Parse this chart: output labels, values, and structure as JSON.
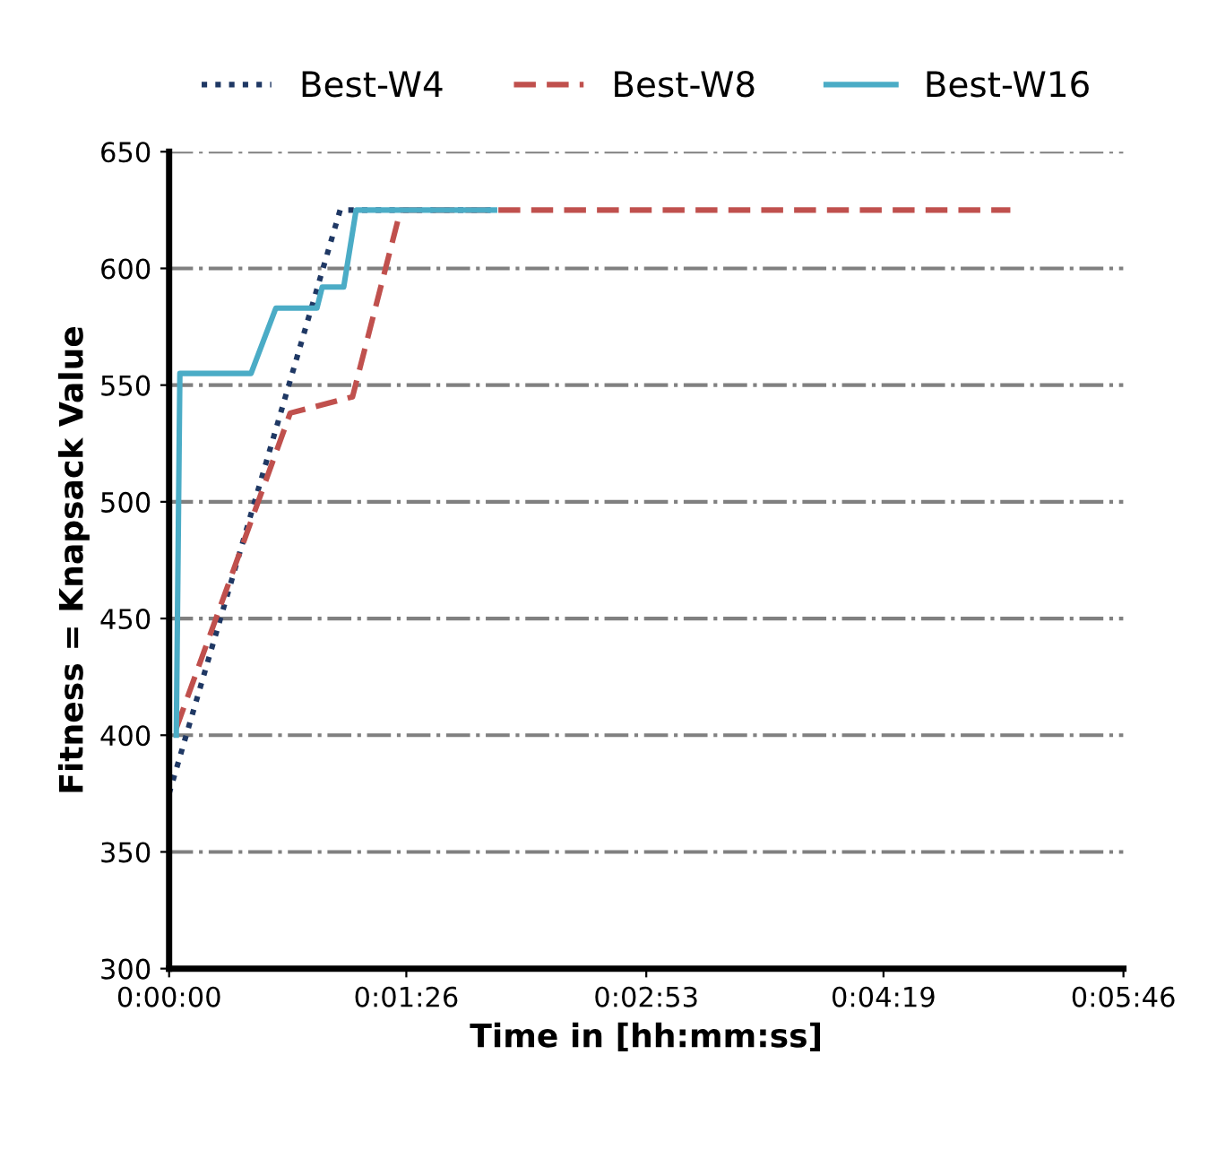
{
  "chart_data": {
    "type": "line",
    "xlabel": "Time in [hh:mm:ss]",
    "ylabel": "Fitness = Knapsack Value",
    "xlim": [
      0,
      346
    ],
    "xticks": [
      {
        "value": 0,
        "label": "0:00:00"
      },
      {
        "value": 86,
        "label": "0:01:26"
      },
      {
        "value": 173,
        "label": "0:02:53"
      },
      {
        "value": 259,
        "label": "0:04:19"
      },
      {
        "value": 346,
        "label": "0:05:46"
      }
    ],
    "ylim": [
      300,
      650
    ],
    "yticks": [
      300,
      350,
      400,
      450,
      500,
      550,
      600,
      650
    ],
    "grid": "y",
    "legend": "top",
    "marker": "none",
    "series": [
      {
        "name": "Best-W4",
        "color": "#1f3864",
        "line_style": "dotted",
        "x": [
          0,
          62,
          118
        ],
        "values": [
          375,
          625,
          625
        ]
      },
      {
        "name": "Best-W8",
        "color": "#c0504d",
        "line_style": "dashed",
        "x": [
          2.6,
          43.9,
          66.5,
          83.9,
          305
        ],
        "values": [
          403,
          538,
          545,
          625,
          625
        ]
      },
      {
        "name": "Best-W16",
        "color": "#4bacc6",
        "line_style": "solid",
        "x": [
          2.6,
          3.9,
          29.7,
          38.7,
          53.6,
          55.5,
          63.3,
          67.8,
          118
        ],
        "values": [
          400,
          555,
          555,
          583,
          583,
          592,
          592,
          625,
          625
        ]
      }
    ]
  }
}
